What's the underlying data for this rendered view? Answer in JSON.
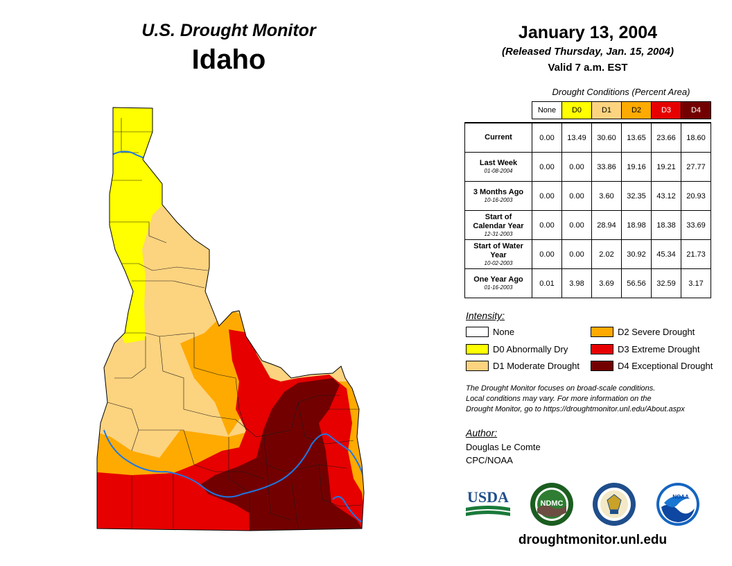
{
  "header": {
    "title": "U.S. Drought Monitor",
    "state": "Idaho",
    "date": "January 13, 2004",
    "released": "(Released Thursday, Jan. 15, 2004)",
    "valid": "Valid 7 a.m. EST"
  },
  "table": {
    "caption": "Drought Conditions (Percent Area)",
    "columns": [
      {
        "label": "None",
        "color": "#ffffff",
        "text_color": "#000000"
      },
      {
        "label": "D0",
        "color": "#ffff00",
        "text_color": "#000000"
      },
      {
        "label": "D1",
        "color": "#fcd37f",
        "text_color": "#000000"
      },
      {
        "label": "D2",
        "color": "#ffaa00",
        "text_color": "#000000"
      },
      {
        "label": "D3",
        "color": "#e60000",
        "text_color": "#ffffff"
      },
      {
        "label": "D4",
        "color": "#730000",
        "text_color": "#ffffff"
      }
    ],
    "rows": [
      {
        "label": "Current",
        "date": "",
        "values": [
          "0.00",
          "13.49",
          "30.60",
          "13.65",
          "23.66",
          "18.60"
        ]
      },
      {
        "label": "Last Week",
        "date": "01-08-2004",
        "values": [
          "0.00",
          "0.00",
          "33.86",
          "19.16",
          "19.21",
          "27.77"
        ]
      },
      {
        "label": "3 Months Ago",
        "date": "10-16-2003",
        "values": [
          "0.00",
          "0.00",
          "3.60",
          "32.35",
          "43.12",
          "20.93"
        ]
      },
      {
        "label": "Start of Calendar Year",
        "date": "12-31-2003",
        "values": [
          "0.00",
          "0.00",
          "28.94",
          "18.98",
          "18.38",
          "33.69"
        ]
      },
      {
        "label": "Start of Water Year",
        "date": "10-02-2003",
        "values": [
          "0.00",
          "0.00",
          "2.02",
          "30.92",
          "45.34",
          "21.73"
        ]
      },
      {
        "label": "One Year Ago",
        "date": "01-16-2003",
        "values": [
          "0.01",
          "3.98",
          "3.69",
          "56.56",
          "32.59",
          "3.17"
        ]
      }
    ]
  },
  "legend": {
    "title": "Intensity:",
    "items": [
      {
        "label": "None",
        "color": "#ffffff"
      },
      {
        "label": "D0 Abnormally Dry",
        "color": "#ffff00"
      },
      {
        "label": "D1 Moderate Drought",
        "color": "#fcd37f"
      },
      {
        "label": "D2 Severe Drought",
        "color": "#ffaa00"
      },
      {
        "label": "D3 Extreme Drought",
        "color": "#e60000"
      },
      {
        "label": "D4 Exceptional Drought",
        "color": "#730000"
      }
    ]
  },
  "note": {
    "line1": "The Drought Monitor focuses on broad-scale conditions.",
    "line2": "Local conditions may vary. For more information on the",
    "line3": "Drought Monitor, go to https://droughtmonitor.unl.edu/About.aspx"
  },
  "author": {
    "title": "Author:",
    "name": "Douglas Le Comte",
    "org": "CPC/NOAA"
  },
  "logos": {
    "usda": "USDA",
    "ndmc": "NDMC",
    "noaa": "NOAA"
  },
  "website": "droughtmonitor.unl.edu",
  "map_colors": {
    "d0": "#ffff00",
    "d1": "#fcd37f",
    "d2": "#ffaa00",
    "d3": "#e60000",
    "d4": "#730000",
    "river": "#1e78e6"
  }
}
